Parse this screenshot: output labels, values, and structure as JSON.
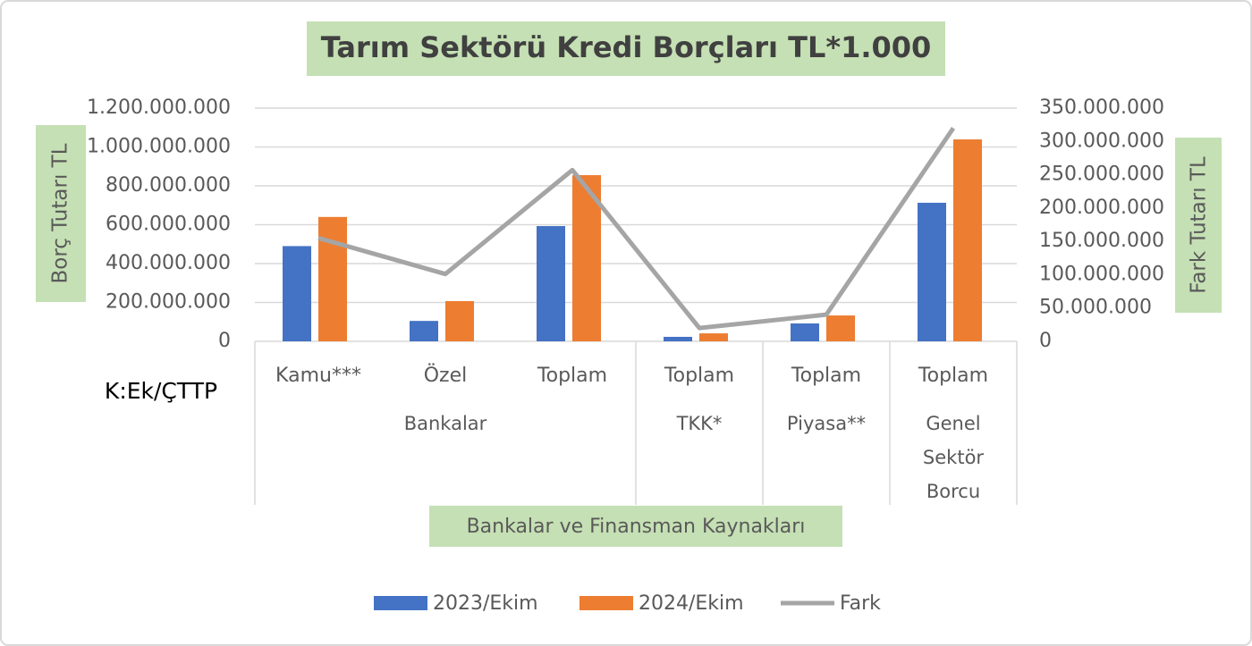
{
  "chart_data": {
    "type": "bar_line",
    "title": "Tarım Sektörü Kredi Borçları TL*1.000",
    "ylabel": "Borç Tutarı TL",
    "y2label": "Fark Tutarı TL",
    "xlabel": "Bankalar ve Finansman Kaynakları",
    "annotation": "K:Ek/ÇTTP",
    "categories": [
      "Kamu***",
      "Özel",
      "Toplam",
      "Toplam",
      "Toplam",
      "Toplam"
    ],
    "groups": [
      {
        "name": "Bankalar",
        "size": 3
      },
      {
        "name": "TKK*",
        "size": 1
      },
      {
        "name": "Piyasa**",
        "size": 1
      },
      {
        "name": "Genel Sektör Borcu",
        "size": 1
      }
    ],
    "series": [
      {
        "name": "2023/Ekim",
        "type": "bar",
        "color": "#4472c4",
        "values": [
          490000000,
          105000000,
          593000000,
          23000000,
          92000000,
          713000000
        ]
      },
      {
        "name": "2024/Ekim",
        "type": "bar",
        "color": "#ed7d31",
        "values": [
          640000000,
          207000000,
          855000000,
          41000000,
          133000000,
          1039000000
        ]
      },
      {
        "name": "Fark",
        "type": "line",
        "axis": "y2",
        "color": "#a5a5a5",
        "values": [
          155000000,
          101000000,
          257000000,
          20000000,
          40000000,
          320000000
        ]
      }
    ],
    "ylim": [
      0,
      1200000000
    ],
    "yticks": [
      0,
      {
        "value": 200000000,
        "label": "200.000.000"
      },
      {
        "value": 400000000,
        "label": "400.000.000"
      },
      {
        "value": 600000000,
        "label": "600.000.000"
      },
      {
        "value": 800000000,
        "label": "800.000.000"
      },
      {
        "value": 1000000000,
        "label": "1.000.000.000"
      },
      {
        "value": 1200000000,
        "label": "1.200.000.000"
      }
    ],
    "y2lim": [
      0,
      350000000
    ],
    "y2ticks": [
      0,
      {
        "value": 50000000,
        "label": "50.000.000"
      },
      {
        "value": 100000000,
        "label": "100.000.000"
      },
      {
        "value": 150000000,
        "label": "150.000.000"
      },
      {
        "value": 200000000,
        "label": "200.000.000"
      },
      {
        "value": 250000000,
        "label": "250.000.000"
      },
      {
        "value": 300000000,
        "label": "300.000.000"
      },
      {
        "value": 350000000,
        "label": "350.000.000"
      }
    ],
    "grid": true
  }
}
